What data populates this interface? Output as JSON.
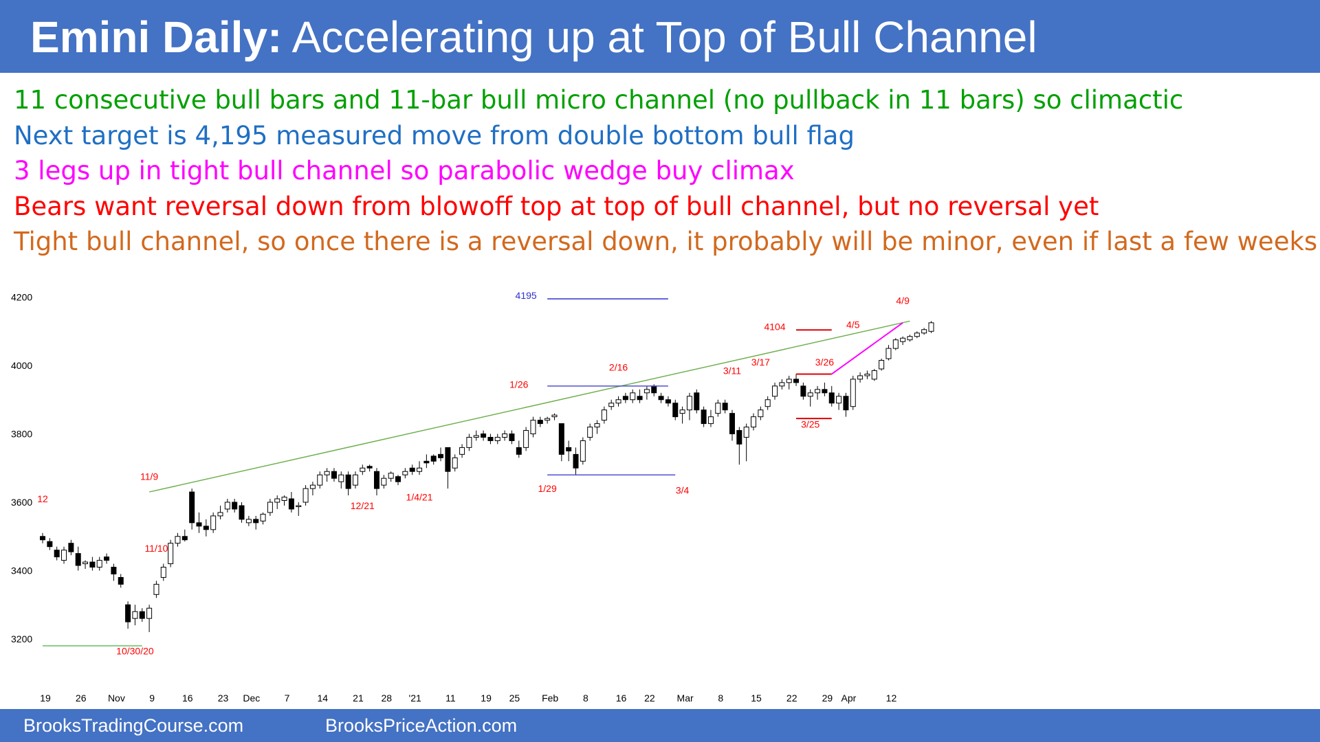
{
  "header": {
    "title_bold": "Emini Daily:",
    "title_rest": "Accelerating up at Top of Bull Channel",
    "background": "#4472c4"
  },
  "notes": [
    {
      "text": "11 consecutive bull bars and 11-bar bull micro channel (no pullback in 11 bars) so climactic",
      "color": "#00a000"
    },
    {
      "text": "Next target is 4,195 measured move from double bottom bull flag",
      "color": "#1f6fc4"
    },
    {
      "text": "3 legs up in tight bull channel so parabolic wedge buy climax",
      "color": "#ff00ff"
    },
    {
      "text": "Bears want reversal down from blowoff top at top of bull channel, but no reversal yet",
      "color": "#ff0000"
    },
    {
      "text": "Tight bull channel, so once there is a reversal down, it probably will be minor, even if last a few weeks",
      "color": "#d2691e"
    }
  ],
  "footer": {
    "left": "BrooksTradingCourse.com",
    "right": "BrooksPriceAction.com"
  },
  "chart_data": {
    "type": "candlestick",
    "title": "",
    "ylim": [
      3150,
      4230
    ],
    "y_ticks": [
      3200,
      3400,
      3600,
      3800,
      4000,
      4200
    ],
    "x_ticks": [
      {
        "label": "19",
        "i": 0
      },
      {
        "label": "26",
        "i": 5
      },
      {
        "label": "Nov",
        "i": 10
      },
      {
        "label": "9",
        "i": 15
      },
      {
        "label": "16",
        "i": 20
      },
      {
        "label": "23",
        "i": 25
      },
      {
        "label": "Dec",
        "i": 29
      },
      {
        "label": "7",
        "i": 34
      },
      {
        "label": "14",
        "i": 39
      },
      {
        "label": "21",
        "i": 44
      },
      {
        "label": "28",
        "i": 48
      },
      {
        "label": "'21",
        "i": 52
      },
      {
        "label": "11",
        "i": 57
      },
      {
        "label": "19",
        "i": 62
      },
      {
        "label": "25",
        "i": 66
      },
      {
        "label": "Feb",
        "i": 71
      },
      {
        "label": "8",
        "i": 76
      },
      {
        "label": "16",
        "i": 81
      },
      {
        "label": "22",
        "i": 85
      },
      {
        "label": "Mar",
        "i": 90
      },
      {
        "label": "8",
        "i": 95
      },
      {
        "label": "15",
        "i": 100
      },
      {
        "label": "22",
        "i": 105
      },
      {
        "label": "29",
        "i": 110
      },
      {
        "label": "Apr",
        "i": 113
      },
      {
        "label": "12",
        "i": 119
      }
    ],
    "ohlc": [
      [
        3500,
        3510,
        3480,
        3490
      ],
      [
        3485,
        3495,
        3460,
        3470
      ],
      [
        3460,
        3470,
        3430,
        3440
      ],
      [
        3430,
        3470,
        3420,
        3460
      ],
      [
        3480,
        3490,
        3445,
        3455
      ],
      [
        3450,
        3470,
        3400,
        3415
      ],
      [
        3420,
        3430,
        3405,
        3425
      ],
      [
        3425,
        3440,
        3400,
        3410
      ],
      [
        3410,
        3440,
        3400,
        3430
      ],
      [
        3440,
        3450,
        3420,
        3430
      ],
      [
        3410,
        3420,
        3370,
        3390
      ],
      [
        3380,
        3390,
        3350,
        3360
      ],
      [
        3300,
        3310,
        3230,
        3250
      ],
      [
        3260,
        3300,
        3240,
        3280
      ],
      [
        3280,
        3290,
        3250,
        3260
      ],
      [
        3260,
        3300,
        3220,
        3290
      ],
      [
        3330,
        3370,
        3320,
        3360
      ],
      [
        3380,
        3420,
        3370,
        3410
      ],
      [
        3420,
        3490,
        3410,
        3480
      ],
      [
        3480,
        3510,
        3470,
        3500
      ],
      [
        3500,
        3520,
        3485,
        3490
      ],
      [
        3630,
        3640,
        3520,
        3540
      ],
      [
        3540,
        3570,
        3510,
        3530
      ],
      [
        3530,
        3550,
        3500,
        3520
      ],
      [
        3520,
        3570,
        3510,
        3560
      ],
      [
        3560,
        3590,
        3550,
        3570
      ],
      [
        3580,
        3610,
        3570,
        3600
      ],
      [
        3600,
        3610,
        3570,
        3580
      ],
      [
        3590,
        3600,
        3540,
        3550
      ],
      [
        3540,
        3560,
        3530,
        3550
      ],
      [
        3550,
        3560,
        3520,
        3540
      ],
      [
        3545,
        3570,
        3535,
        3565
      ],
      [
        3570,
        3610,
        3560,
        3600
      ],
      [
        3600,
        3620,
        3580,
        3610
      ],
      [
        3605,
        3620,
        3590,
        3615
      ],
      [
        3610,
        3630,
        3570,
        3580
      ],
      [
        3590,
        3600,
        3560,
        3590
      ],
      [
        3600,
        3650,
        3590,
        3640
      ],
      [
        3640,
        3660,
        3620,
        3650
      ],
      [
        3650,
        3690,
        3640,
        3680
      ],
      [
        3680,
        3700,
        3660,
        3690
      ],
      [
        3690,
        3700,
        3660,
        3670
      ],
      [
        3660,
        3690,
        3640,
        3680
      ],
      [
        3680,
        3690,
        3620,
        3640
      ],
      [
        3650,
        3690,
        3640,
        3680
      ],
      [
        3690,
        3710,
        3680,
        3700
      ],
      [
        3705,
        3710,
        3690,
        3700
      ],
      [
        3690,
        3700,
        3620,
        3640
      ],
      [
        3650,
        3680,
        3640,
        3670
      ],
      [
        3670,
        3690,
        3660,
        3685
      ],
      [
        3675,
        3680,
        3650,
        3660
      ],
      [
        3680,
        3700,
        3670,
        3690
      ],
      [
        3700,
        3710,
        3680,
        3690
      ],
      [
        3690,
        3720,
        3680,
        3700
      ],
      [
        3720,
        3740,
        3700,
        3715
      ],
      [
        3735,
        3740,
        3710,
        3720
      ],
      [
        3740,
        3760,
        3720,
        3730
      ],
      [
        3760,
        3760,
        3640,
        3690
      ],
      [
        3700,
        3740,
        3690,
        3730
      ],
      [
        3740,
        3770,
        3730,
        3760
      ],
      [
        3760,
        3800,
        3750,
        3790
      ],
      [
        3790,
        3810,
        3780,
        3795
      ],
      [
        3800,
        3810,
        3780,
        3790
      ],
      [
        3790,
        3800,
        3770,
        3780
      ],
      [
        3780,
        3800,
        3770,
        3790
      ],
      [
        3790,
        3810,
        3780,
        3800
      ],
      [
        3800,
        3810,
        3770,
        3780
      ],
      [
        3760,
        3780,
        3730,
        3740
      ],
      [
        3760,
        3820,
        3750,
        3810
      ],
      [
        3800,
        3850,
        3790,
        3840
      ],
      [
        3840,
        3850,
        3820,
        3830
      ],
      [
        3840,
        3850,
        3830,
        3845
      ],
      [
        3850,
        3860,
        3840,
        3855
      ],
      [
        3830,
        3830,
        3720,
        3740
      ],
      [
        3760,
        3780,
        3720,
        3750
      ],
      [
        3740,
        3760,
        3680,
        3700
      ],
      [
        3720,
        3790,
        3710,
        3780
      ],
      [
        3790,
        3830,
        3780,
        3820
      ],
      [
        3820,
        3840,
        3800,
        3830
      ],
      [
        3840,
        3880,
        3830,
        3870
      ],
      [
        3880,
        3900,
        3870,
        3890
      ],
      [
        3890,
        3910,
        3880,
        3900
      ],
      [
        3910,
        3920,
        3890,
        3900
      ],
      [
        3900,
        3930,
        3890,
        3920
      ],
      [
        3910,
        3930,
        3890,
        3900
      ],
      [
        3920,
        3940,
        3900,
        3930
      ],
      [
        3940,
        3945,
        3910,
        3920
      ],
      [
        3910,
        3920,
        3890,
        3900
      ],
      [
        3900,
        3910,
        3880,
        3890
      ],
      [
        3890,
        3900,
        3840,
        3850
      ],
      [
        3860,
        3880,
        3830,
        3870
      ],
      [
        3870,
        3920,
        3840,
        3910
      ],
      [
        3920,
        3930,
        3860,
        3870
      ],
      [
        3870,
        3880,
        3820,
        3830
      ],
      [
        3830,
        3870,
        3820,
        3850
      ],
      [
        3860,
        3900,
        3850,
        3890
      ],
      [
        3890,
        3900,
        3860,
        3870
      ],
      [
        3860,
        3870,
        3780,
        3800
      ],
      [
        3810,
        3820,
        3710,
        3770
      ],
      [
        3790,
        3830,
        3720,
        3820
      ],
      [
        3820,
        3860,
        3810,
        3850
      ],
      [
        3850,
        3880,
        3840,
        3870
      ],
      [
        3880,
        3910,
        3870,
        3900
      ],
      [
        3910,
        3950,
        3900,
        3940
      ],
      [
        3940,
        3960,
        3930,
        3950
      ],
      [
        3950,
        3970,
        3930,
        3960
      ],
      [
        3960,
        3975,
        3940,
        3950
      ],
      [
        3940,
        3950,
        3900,
        3910
      ],
      [
        3910,
        3930,
        3880,
        3920
      ],
      [
        3920,
        3940,
        3900,
        3930
      ],
      [
        3930,
        3950,
        3910,
        3920
      ],
      [
        3920,
        3940,
        3880,
        3890
      ],
      [
        3890,
        3920,
        3870,
        3910
      ],
      [
        3910,
        3920,
        3850,
        3870
      ],
      [
        3880,
        3970,
        3870,
        3960
      ],
      [
        3960,
        3980,
        3950,
        3970
      ],
      [
        3970,
        3985,
        3960,
        3975
      ],
      [
        3960,
        3990,
        3955,
        3985
      ],
      [
        3990,
        4020,
        3985,
        4015
      ],
      [
        4020,
        4060,
        4015,
        4050
      ],
      [
        4050,
        4080,
        4045,
        4075
      ],
      [
        4070,
        4085,
        4060,
        4080
      ],
      [
        4075,
        4090,
        4070,
        4085
      ],
      [
        4085,
        4100,
        4080,
        4095
      ],
      [
        4095,
        4110,
        4090,
        4105
      ],
      [
        4100,
        4130,
        4095,
        4125
      ]
    ],
    "lines": [
      {
        "name": "bull-channel-line",
        "color": "#70b050",
        "from": [
          15,
          3630
        ],
        "to": [
          122,
          4130
        ]
      },
      {
        "name": "target-4195-line",
        "color": "#3030d0",
        "from": [
          71,
          4195
        ],
        "to": [
          88,
          4195
        ]
      },
      {
        "name": "2-16-level-line",
        "color": "#5050d0",
        "from": [
          71,
          3940
        ],
        "to": [
          88,
          3940
        ]
      },
      {
        "name": "double-bottom-line",
        "color": "#5050d0",
        "from": [
          71,
          3680
        ],
        "to": [
          89,
          3680
        ]
      },
      {
        "name": "10-30-low-line",
        "color": "#60c060",
        "from": [
          0,
          3180
        ],
        "to": [
          14,
          3180
        ]
      },
      {
        "name": "4104-line",
        "color": "#e00000",
        "from": [
          106,
          4104
        ],
        "to": [
          111,
          4104
        ]
      },
      {
        "name": "3-17-line",
        "color": "#e00000",
        "from": [
          106,
          3975
        ],
        "to": [
          111,
          3975
        ]
      },
      {
        "name": "3-25-line",
        "color": "#e00000",
        "from": [
          106,
          3845
        ],
        "to": [
          111,
          3845
        ]
      },
      {
        "name": "parabolic-wedge-line",
        "color": "#ff00ff",
        "from": [
          111,
          3975
        ],
        "to": [
          121,
          4125
        ]
      }
    ],
    "annotations": [
      {
        "text": "12",
        "i": 0,
        "y": 3600,
        "color": "#ff0000"
      },
      {
        "text": "11/9",
        "i": 15,
        "y": 3665,
        "color": "#ff0000"
      },
      {
        "text": "11/10",
        "i": 16,
        "y": 3455,
        "color": "#ff0000"
      },
      {
        "text": "10/30/20",
        "i": 13,
        "y": 3155,
        "color": "#ff0000"
      },
      {
        "text": "12/21",
        "i": 45,
        "y": 3580,
        "color": "#ff0000"
      },
      {
        "text": "1/4/21",
        "i": 53,
        "y": 3605,
        "color": "#ff0000"
      },
      {
        "text": "1/26",
        "i": 67,
        "y": 3935,
        "color": "#ff0000"
      },
      {
        "text": "1/29",
        "i": 71,
        "y": 3630,
        "color": "#ff0000"
      },
      {
        "text": "2/16",
        "i": 81,
        "y": 3985,
        "color": "#ff0000"
      },
      {
        "text": "3/4",
        "i": 90,
        "y": 3625,
        "color": "#ff0000"
      },
      {
        "text": "3/11",
        "i": 97,
        "y": 3975,
        "color": "#ff0000"
      },
      {
        "text": "3/17",
        "i": 101,
        "y": 4000,
        "color": "#ff0000"
      },
      {
        "text": "3/26",
        "i": 110,
        "y": 4000,
        "color": "#ff0000"
      },
      {
        "text": "3/25",
        "i": 108,
        "y": 3818,
        "color": "#ff0000"
      },
      {
        "text": "4/5",
        "i": 114,
        "y": 4110,
        "color": "#ff0000"
      },
      {
        "text": "4/9",
        "i": 121,
        "y": 4180,
        "color": "#ff0000"
      },
      {
        "text": "4104",
        "i": 103,
        "y": 4104,
        "color": "#ff0000"
      },
      {
        "text": "4195",
        "i": 68,
        "y": 4195,
        "color": "#3030d0"
      }
    ]
  }
}
